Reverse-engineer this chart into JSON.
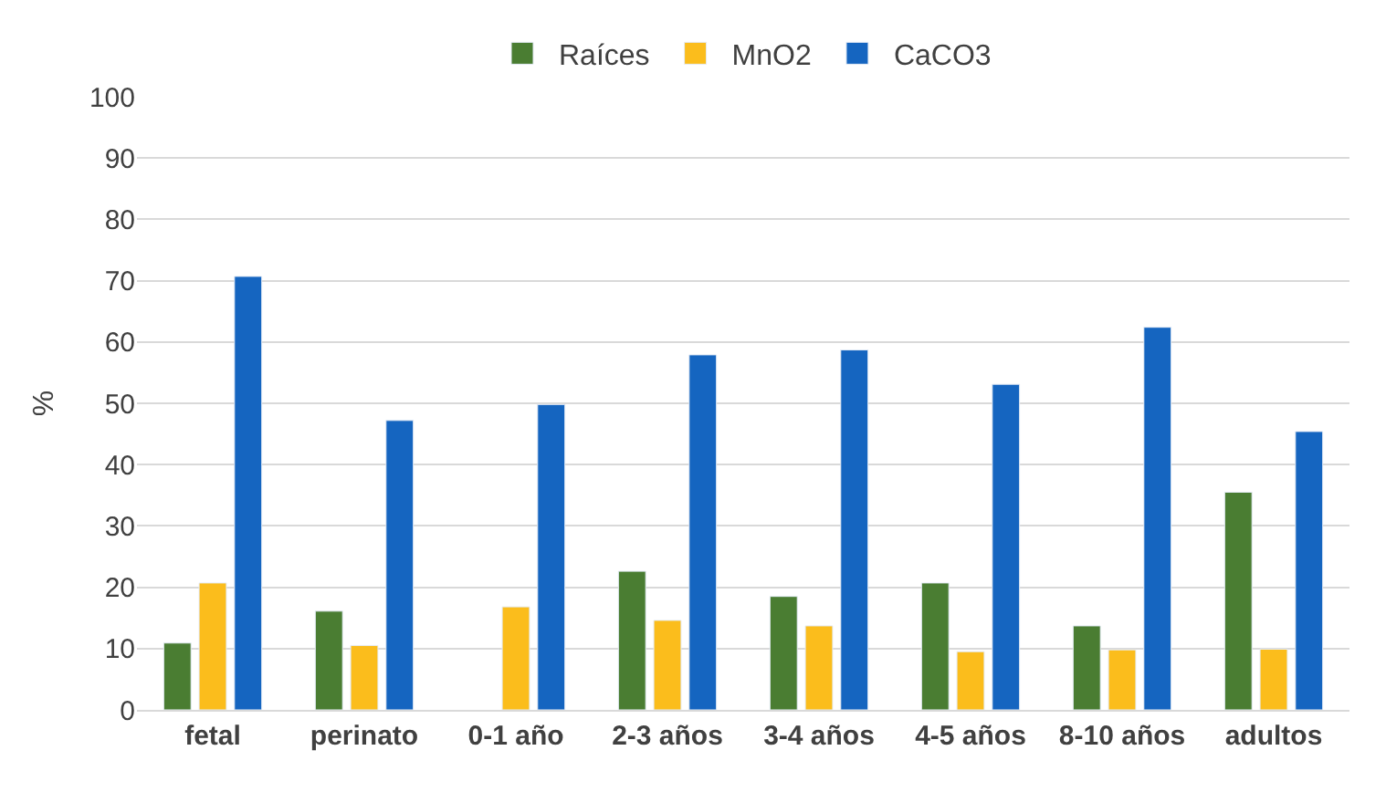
{
  "chart_data": {
    "type": "bar",
    "ylabel": "%",
    "categories": [
      "fetal",
      "perinato",
      "0-1 año",
      "2-3 años",
      "3-4 años",
      "4-5 años",
      "8-10 años",
      "adultos"
    ],
    "series": [
      {
        "name": "Raíces",
        "color": "#4a7d32",
        "values": [
          10.9,
          16.1,
          null,
          22.6,
          18.5,
          20.7,
          13.7,
          35.5
        ]
      },
      {
        "name": "MnO2",
        "color": "#fbbd1c",
        "values": [
          20.7,
          10.5,
          16.8,
          14.6,
          13.7,
          9.5,
          9.8,
          9.9
        ]
      },
      {
        "name": "CaCO3",
        "color": "#1565c0",
        "values": [
          70.7,
          47.2,
          49.8,
          57.9,
          58.7,
          53.1,
          62.4,
          45.4
        ]
      }
    ],
    "ylim": [
      0,
      100
    ],
    "yticks": [
      0,
      10,
      20,
      30,
      40,
      50,
      60,
      70,
      80,
      90,
      100
    ],
    "grid": "y",
    "legend": "top"
  }
}
